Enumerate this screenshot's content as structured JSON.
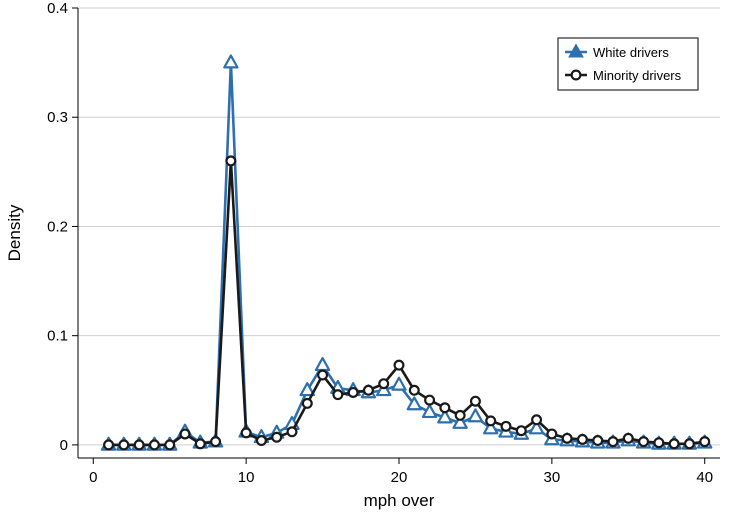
{
  "chart_data": {
    "type": "line",
    "title": "",
    "xlabel": "mph over",
    "ylabel": "Density",
    "xlim": [
      -1,
      41
    ],
    "ylim": [
      -0.012,
      0.4
    ],
    "xticks": [
      0,
      10,
      20,
      30,
      40
    ],
    "yticks": [
      0,
      0.1,
      0.2,
      0.3,
      0.4
    ],
    "xtick_labels": [
      "0",
      "10",
      "20",
      "30",
      "40"
    ],
    "ytick_labels": [
      "0",
      "0.1",
      "0.2",
      "0.3",
      "0.4"
    ],
    "grid": "horizontal",
    "legend_position": "top-right",
    "x": [
      1,
      2,
      3,
      4,
      5,
      6,
      7,
      8,
      9,
      10,
      11,
      12,
      13,
      14,
      15,
      16,
      17,
      18,
      19,
      20,
      21,
      22,
      23,
      24,
      25,
      26,
      27,
      28,
      29,
      30,
      31,
      32,
      33,
      34,
      35,
      36,
      37,
      38,
      39,
      40
    ],
    "series": [
      {
        "name": "White drivers",
        "color": "#2e6fad",
        "marker": "triangle",
        "values": [
          0.0,
          0.0,
          0.0,
          0.0,
          0.0,
          0.012,
          0.002,
          0.003,
          0.35,
          0.012,
          0.007,
          0.011,
          0.019,
          0.05,
          0.073,
          0.052,
          0.05,
          0.048,
          0.05,
          0.055,
          0.037,
          0.03,
          0.025,
          0.02,
          0.026,
          0.015,
          0.012,
          0.01,
          0.015,
          0.005,
          0.004,
          0.003,
          0.002,
          0.002,
          0.004,
          0.002,
          0.001,
          0.001,
          0.001,
          0.002
        ]
      },
      {
        "name": "Minority drivers",
        "color": "#1a1a1a",
        "marker": "circle",
        "values": [
          0.0,
          0.0,
          0.0,
          0.0,
          0.0,
          0.01,
          0.001,
          0.003,
          0.26,
          0.011,
          0.004,
          0.007,
          0.012,
          0.038,
          0.064,
          0.046,
          0.048,
          0.05,
          0.056,
          0.073,
          0.05,
          0.041,
          0.034,
          0.027,
          0.04,
          0.022,
          0.017,
          0.013,
          0.023,
          0.01,
          0.006,
          0.005,
          0.004,
          0.003,
          0.006,
          0.003,
          0.002,
          0.001,
          0.001,
          0.003
        ]
      }
    ]
  }
}
